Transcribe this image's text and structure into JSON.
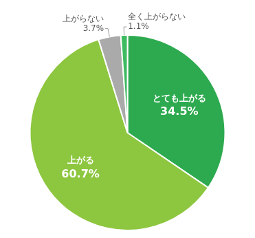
{
  "chart_data": {
    "type": "pie",
    "categories": [
      "とても上がる",
      "上がる",
      "上がらない",
      "全く上がらない"
    ],
    "values": [
      34.5,
      60.7,
      3.7,
      1.1
    ],
    "value_labels": [
      "34.5%",
      "60.7%",
      "3.7%",
      "1.1%"
    ],
    "colors": [
      "#2daa4f",
      "#8dc63f",
      "#aaaaaa",
      "#3dbb60"
    ],
    "data_labels": true
  }
}
